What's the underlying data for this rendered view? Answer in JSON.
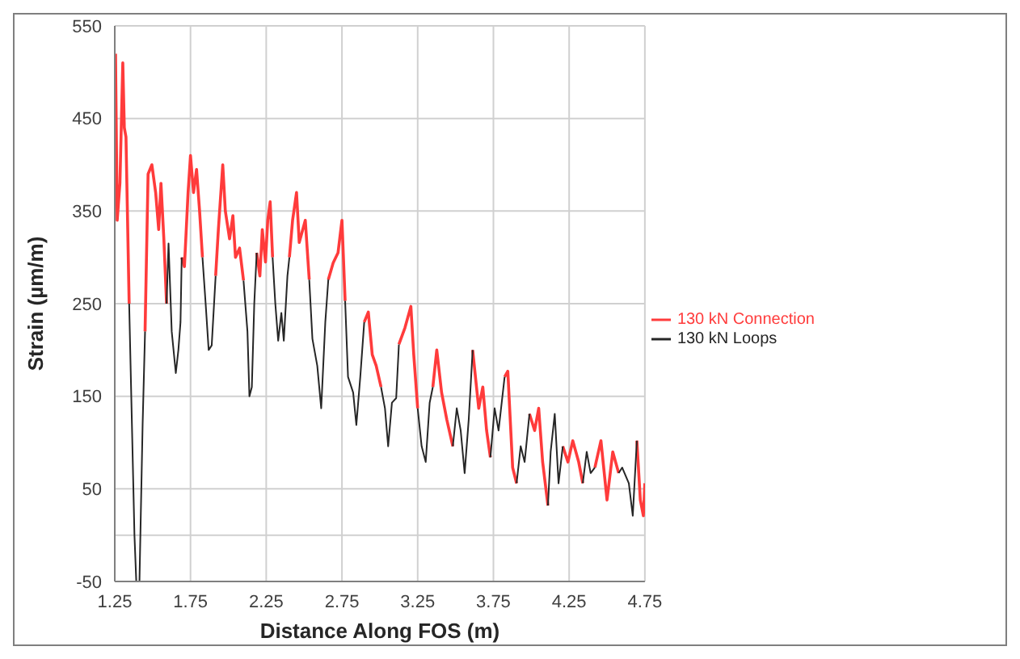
{
  "chart_data": {
    "type": "line",
    "xlabel": "Distance Along FOS (m)",
    "ylabel": "Strain (µm/m)",
    "x": [
      1.255,
      1.266,
      1.284,
      1.303,
      1.313,
      1.324,
      1.345,
      1.352,
      1.38,
      1.392,
      1.413,
      1.434,
      1.45,
      1.47,
      1.495,
      1.52,
      1.54,
      1.555,
      1.574,
      1.592,
      1.605,
      1.626,
      1.653,
      1.67,
      1.684,
      1.692,
      1.71,
      1.734,
      1.75,
      1.77,
      1.79,
      1.81,
      1.829,
      1.85,
      1.87,
      1.89,
      1.916,
      1.934,
      1.963,
      1.98,
      2.008,
      2.03,
      2.047,
      2.074,
      2.1,
      2.126,
      2.139,
      2.155,
      2.171,
      2.187,
      2.208,
      2.224,
      2.245,
      2.26,
      2.276,
      2.292,
      2.31,
      2.329,
      2.35,
      2.366,
      2.39,
      2.403,
      2.424,
      2.45,
      2.468,
      2.508,
      2.534,
      2.555,
      2.587,
      2.613,
      2.64,
      2.66,
      2.692,
      2.724,
      2.75,
      2.771,
      2.79,
      2.824,
      2.845,
      2.871,
      2.897,
      2.924,
      2.95,
      2.976,
      3.008,
      3.034,
      3.055,
      3.08,
      3.108,
      3.126,
      3.166,
      3.205,
      3.224,
      3.25,
      3.276,
      3.303,
      3.329,
      3.35,
      3.376,
      3.408,
      3.442,
      3.482,
      3.508,
      3.534,
      3.56,
      3.587,
      3.613,
      3.653,
      3.68,
      3.705,
      3.73,
      3.758,
      3.784,
      3.824,
      3.845,
      3.877,
      3.903,
      3.93,
      3.956,
      3.988,
      4.022,
      4.049,
      4.075,
      4.11,
      4.128,
      4.155,
      4.18,
      4.208,
      4.242,
      4.274,
      4.313,
      4.34,
      4.366,
      4.392,
      4.42,
      4.46,
      4.5,
      4.538,
      4.577,
      4.6,
      4.644,
      4.67,
      4.697,
      4.72,
      4.74,
      4.75
    ],
    "series": [
      {
        "name": "130 kN Connection",
        "color": "#ff3b3b",
        "values": [
          520,
          340,
          380,
          510,
          440,
          430,
          250,
          null,
          null,
          null,
          null,
          null,
          220,
          390,
          400,
          370,
          330,
          380,
          320,
          250,
          null,
          null,
          null,
          null,
          null,
          300,
          290,
          370,
          410,
          370,
          395,
          350,
          300,
          null,
          null,
          null,
          280,
          330,
          400,
          350,
          320,
          345,
          300,
          310,
          275,
          null,
          null,
          null,
          null,
          305,
          280,
          330,
          295,
          340,
          360,
          300,
          null,
          null,
          null,
          null,
          null,
          300,
          340,
          370,
          316,
          340,
          276,
          null,
          null,
          null,
          null,
          276,
          294,
          305,
          340,
          253,
          null,
          null,
          null,
          null,
          230,
          241,
          195,
          183,
          160,
          null,
          null,
          null,
          null,
          206,
          224,
          247,
          195,
          137,
          null,
          null,
          null,
          160,
          200,
          154,
          125,
          96,
          null,
          null,
          null,
          null,
          200,
          137,
          160,
          113,
          84,
          null,
          null,
          171,
          177,
          73,
          56,
          null,
          null,
          131,
          113,
          137,
          79,
          32,
          null,
          null,
          null,
          96,
          79,
          102,
          79,
          56,
          null,
          null,
          73,
          102,
          38,
          90,
          67,
          null,
          null,
          null,
          102,
          38,
          21,
          56
        ]
      },
      {
        "name": "130 kN Loops",
        "color": "#262626",
        "values": [
          null,
          null,
          null,
          null,
          null,
          null,
          250,
          200,
          0,
          -50,
          -50,
          120,
          220,
          null,
          null,
          null,
          null,
          null,
          null,
          250,
          315,
          220,
          175,
          200,
          230,
          300,
          null,
          null,
          null,
          null,
          null,
          null,
          300,
          250,
          200,
          205,
          280,
          null,
          null,
          null,
          null,
          null,
          null,
          null,
          275,
          220,
          150,
          160,
          250,
          305,
          null,
          null,
          null,
          null,
          null,
          300,
          250,
          210,
          240,
          210,
          280,
          300,
          null,
          null,
          null,
          null,
          276,
          212,
          183,
          137,
          230,
          276,
          null,
          null,
          null,
          253,
          171,
          154,
          119,
          171,
          230,
          null,
          null,
          null,
          160,
          137,
          96,
          143,
          148,
          206,
          null,
          null,
          null,
          137,
          96,
          79,
          143,
          160,
          null,
          null,
          null,
          96,
          137,
          113,
          67,
          125,
          200,
          null,
          null,
          null,
          84,
          137,
          113,
          171,
          null,
          null,
          56,
          96,
          79,
          131,
          null,
          null,
          null,
          32,
          90,
          131,
          56,
          96,
          null,
          null,
          null,
          56,
          90,
          67,
          73,
          null,
          null,
          null,
          67,
          73,
          56,
          21,
          102,
          null,
          null,
          null
        ]
      }
    ],
    "xlim": [
      1.25,
      4.75
    ],
    "xticks": [
      1.25,
      1.75,
      2.25,
      2.75,
      3.25,
      3.75,
      4.25,
      4.75
    ],
    "ylim": [
      -50,
      550
    ],
    "yticks": [
      -50,
      {
        "value": 0,
        "label": null
      },
      50,
      150,
      250,
      350,
      450,
      550
    ],
    "grid": true,
    "legend": "right"
  }
}
